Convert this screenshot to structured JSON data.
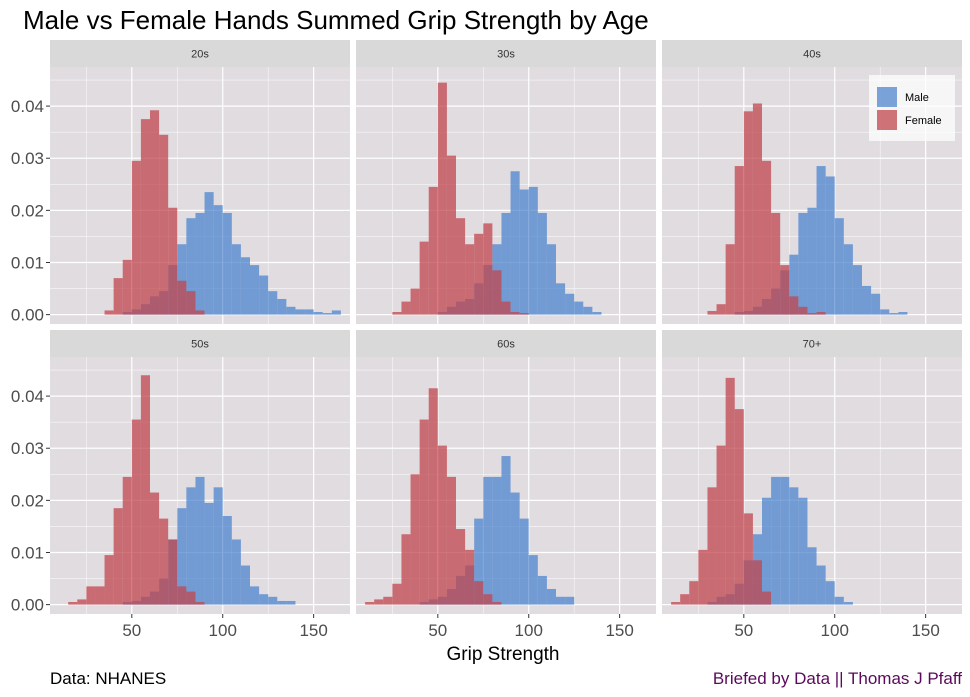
{
  "chart_data": {
    "type": "bar",
    "title": "Male vs Female Hands Summed Grip Strength by Age",
    "xlabel": "Grip Strength",
    "ylabel": "",
    "xlim": [
      5,
      170
    ],
    "ylim": [
      -0.0018,
      0.0475
    ],
    "x_ticks": [
      50,
      100,
      150
    ],
    "y_ticks": [
      0.0,
      0.01,
      0.02,
      0.03,
      0.04
    ],
    "y_tick_labels": [
      "0.00",
      "0.01",
      "0.02",
      "0.03",
      "0.04"
    ],
    "bin_width": 5,
    "legend": {
      "position": "top-right",
      "entries": [
        "Male",
        "Female"
      ]
    },
    "colors": {
      "Male": "#4f86cf",
      "Female": "#c0464d",
      "panel_bg": "#e0dce0",
      "strip_bg": "#d9d9d9"
    },
    "caption_left": "Data: NHANES",
    "caption_right": "Briefed by Data || Thomas J Pfaff",
    "panels": [
      {
        "label": "20s",
        "series": [
          {
            "name": "Male",
            "bin_starts": [
              45,
              50,
              55,
              60,
              65,
              70,
              75,
              80,
              85,
              90,
              95,
              100,
              105,
              110,
              115,
              120,
              125,
              130,
              135,
              140,
              145,
              150,
              155,
              160
            ],
            "values": [
              0.0005,
              0.001,
              0.002,
              0.0035,
              0.0045,
              0.0095,
              0.0135,
              0.0185,
              0.0195,
              0.0235,
              0.021,
              0.0195,
              0.0135,
              0.011,
              0.0095,
              0.0075,
              0.0045,
              0.003,
              0.0015,
              0.001,
              0.001,
              0.0005,
              0.0003,
              0.0008
            ]
          },
          {
            "name": "Female",
            "bin_starts": [
              35,
              40,
              45,
              50,
              55,
              60,
              65,
              70,
              75,
              80,
              85
            ],
            "values": [
              0.0008,
              0.007,
              0.0105,
              0.0295,
              0.0375,
              0.0392,
              0.0345,
              0.0205,
              0.0065,
              0.0045,
              0.0008
            ]
          }
        ]
      },
      {
        "label": "30s",
        "series": [
          {
            "name": "Male",
            "bin_starts": [
              50,
              55,
              60,
              65,
              70,
              75,
              80,
              85,
              90,
              95,
              100,
              105,
              110,
              115,
              120,
              125,
              130,
              135
            ],
            "values": [
              0.0005,
              0.0015,
              0.0025,
              0.003,
              0.006,
              0.0095,
              0.0135,
              0.0195,
              0.0275,
              0.024,
              0.0245,
              0.0195,
              0.0135,
              0.006,
              0.004,
              0.0025,
              0.0015,
              0.0005
            ]
          },
          {
            "name": "Female",
            "bin_starts": [
              25,
              30,
              35,
              40,
              45,
              50,
              55,
              60,
              65,
              70,
              75,
              80,
              85,
              90,
              95
            ],
            "values": [
              0.0005,
              0.0025,
              0.005,
              0.014,
              0.0245,
              0.0445,
              0.0305,
              0.0185,
              0.0135,
              0.0155,
              0.0175,
              0.0085,
              0.0025,
              0.0005,
              0.0003
            ]
          }
        ]
      },
      {
        "label": "40s",
        "series": [
          {
            "name": "Male",
            "bin_starts": [
              45,
              50,
              55,
              60,
              65,
              70,
              75,
              80,
              85,
              90,
              95,
              100,
              105,
              110,
              115,
              120,
              125,
              130,
              135
            ],
            "values": [
              0.0005,
              0.0007,
              0.0015,
              0.003,
              0.005,
              0.0085,
              0.0115,
              0.0195,
              0.0205,
              0.0285,
              0.0265,
              0.0185,
              0.0135,
              0.0095,
              0.0055,
              0.004,
              0.001,
              0.0003,
              0.0005
            ]
          },
          {
            "name": "Female",
            "bin_starts": [
              30,
              35,
              40,
              45,
              50,
              55,
              60,
              65,
              70,
              75,
              80,
              85,
              90
            ],
            "values": [
              0.0007,
              0.002,
              0.0135,
              0.0285,
              0.039,
              0.0405,
              0.0295,
              0.0195,
              0.0095,
              0.0035,
              0.0015,
              0.0003,
              0.0005
            ]
          }
        ]
      },
      {
        "label": "50s",
        "series": [
          {
            "name": "Male",
            "bin_starts": [
              45,
              50,
              55,
              60,
              65,
              70,
              75,
              80,
              85,
              90,
              95,
              100,
              105,
              110,
              115,
              120,
              125,
              130,
              135
            ],
            "values": [
              0.0005,
              0.0007,
              0.0015,
              0.0025,
              0.005,
              0.0125,
              0.0185,
              0.0225,
              0.0245,
              0.0195,
              0.0225,
              0.017,
              0.0125,
              0.0075,
              0.0035,
              0.002,
              0.0015,
              0.0007,
              0.0007
            ]
          },
          {
            "name": "Female",
            "bin_starts": [
              15,
              20,
              25,
              30,
              35,
              40,
              45,
              50,
              55,
              60,
              65,
              70,
              75,
              80,
              85
            ],
            "values": [
              0.0005,
              0.001,
              0.0035,
              0.0035,
              0.0095,
              0.0185,
              0.0245,
              0.0355,
              0.044,
              0.0215,
              0.0165,
              0.0125,
              0.0035,
              0.0025,
              0.0005
            ]
          }
        ]
      },
      {
        "label": "60s",
        "series": [
          {
            "name": "Male",
            "bin_starts": [
              40,
              45,
              50,
              55,
              60,
              65,
              70,
              75,
              80,
              85,
              90,
              95,
              100,
              105,
              110,
              115,
              120
            ],
            "values": [
              0.0005,
              0.001,
              0.0015,
              0.003,
              0.0055,
              0.0075,
              0.0165,
              0.0245,
              0.0245,
              0.0285,
              0.0215,
              0.0165,
              0.0095,
              0.0055,
              0.003,
              0.0015,
              0.0015
            ]
          },
          {
            "name": "Female",
            "bin_starts": [
              10,
              15,
              20,
              25,
              30,
              35,
              40,
              45,
              50,
              55,
              60,
              65,
              70,
              75,
              80
            ],
            "values": [
              0.0005,
              0.001,
              0.0015,
              0.004,
              0.0135,
              0.025,
              0.0355,
              0.0415,
              0.0305,
              0.0245,
              0.0145,
              0.0105,
              0.0045,
              0.002,
              0.0005
            ]
          }
        ]
      },
      {
        "label": "70+",
        "series": [
          {
            "name": "Male",
            "bin_starts": [
              30,
              35,
              40,
              45,
              50,
              55,
              60,
              65,
              70,
              75,
              80,
              85,
              90,
              95,
              100,
              105
            ],
            "values": [
              0.0005,
              0.0015,
              0.002,
              0.004,
              0.0085,
              0.0135,
              0.0205,
              0.0245,
              0.0245,
              0.0225,
              0.0205,
              0.011,
              0.0075,
              0.0045,
              0.0015,
              0.0005
            ]
          },
          {
            "name": "Female",
            "bin_starts": [
              10,
              15,
              20,
              25,
              30,
              35,
              40,
              45,
              50,
              55,
              60
            ],
            "values": [
              0.0005,
              0.002,
              0.0045,
              0.0105,
              0.0225,
              0.0305,
              0.0435,
              0.0375,
              0.0175,
              0.0085,
              0.0025
            ]
          }
        ]
      }
    ]
  }
}
